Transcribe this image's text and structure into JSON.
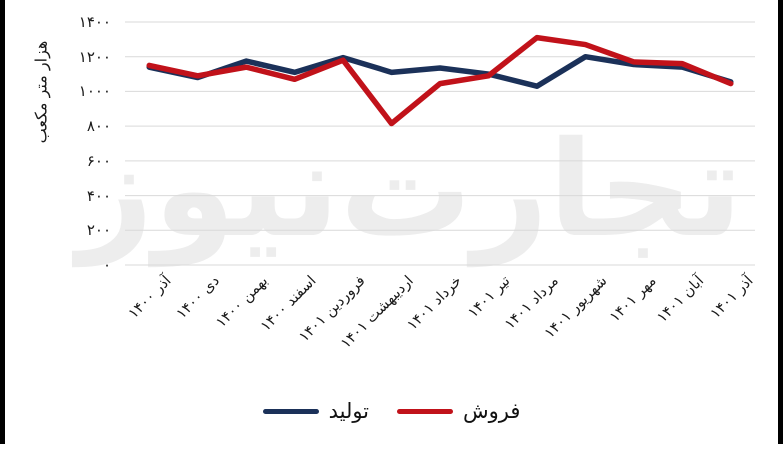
{
  "decor": {
    "side_bar_color": "#000000",
    "background_color": "#ffffff"
  },
  "watermark": {
    "text": "تجارت‌نیوز",
    "color": "#ededed"
  },
  "chart_data": {
    "type": "line",
    "title": "",
    "ylabel": "هزار متر مکعب",
    "xlabel": "",
    "ylim": [
      0,
      1400
    ],
    "grid": "horizontal",
    "gridline_color": "#d9d9d9",
    "text_color": "#1a1a1a",
    "legend_position": "bottom",
    "ytick_values": [
      1400,
      1200,
      1000,
      800,
      600,
      400,
      200,
      0
    ],
    "ytick_labels": [
      "۱۴۰۰",
      "۱۲۰۰",
      "۱۰۰۰",
      "۸۰۰",
      "۶۰۰",
      "۴۰۰",
      "۲۰۰",
      "۰"
    ],
    "categories": [
      "آذر ۱۴۰۰",
      "دی ۱۴۰۰",
      "بهمن ۱۴۰۰",
      "اسفند ۱۴۰۰",
      "فروردین ۱۴۰۱",
      "اردیبهشت ۱۴۰۱",
      "خرداد ۱۴۰۱",
      "تیر ۱۴۰۱",
      "مرداد ۱۴۰۱",
      "شهریور ۱۴۰۱",
      "مهر ۱۴۰۱",
      "آبان ۱۴۰۱",
      "آذر ۱۴۰۱"
    ],
    "series": [
      {
        "name": "تولید",
        "color": "#1b3159",
        "values": [
          1140,
          1080,
          1175,
          1110,
          1195,
          1110,
          1135,
          1100,
          1030,
          1200,
          1155,
          1140,
          1055
        ]
      },
      {
        "name": "فروش",
        "color": "#c1121a",
        "values": [
          1150,
          1090,
          1140,
          1070,
          1180,
          815,
          1045,
          1090,
          1310,
          1270,
          1170,
          1160,
          1045
        ]
      }
    ]
  }
}
